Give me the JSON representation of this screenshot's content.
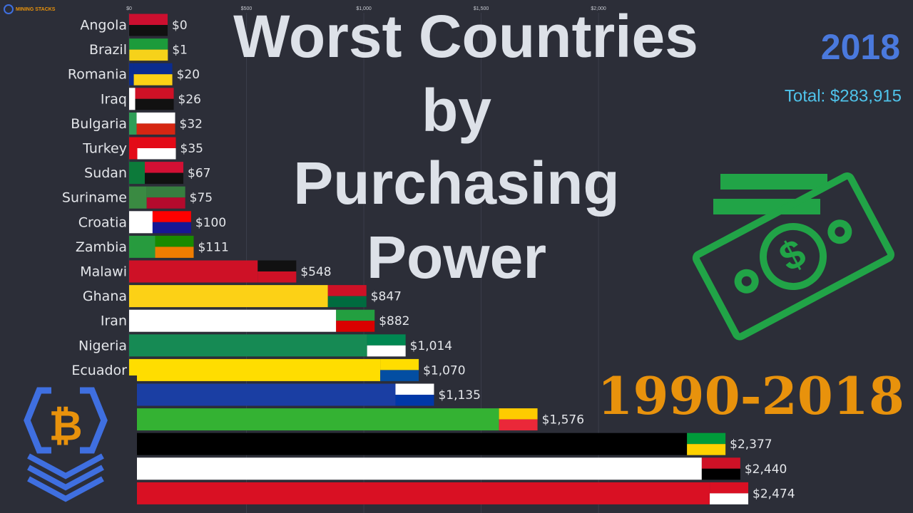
{
  "chart_data": {
    "type": "bar",
    "orientation": "horizontal",
    "title": [
      "Worst Countries",
      "by",
      "Purchasing",
      "Power"
    ],
    "year": "2018",
    "total": "Total: $283,915",
    "period": "1990-2018",
    "brand": "MINING STACKS",
    "categories": [
      "Angola",
      "Brazil",
      "Romania",
      "Iraq",
      "Bulgaria",
      "Turkey",
      "Sudan",
      "Suriname",
      "Croatia",
      "Zambia",
      "Malawi",
      "Ghana",
      "Iran",
      "Nigeria",
      "Ecuador",
      null,
      null,
      null,
      null,
      null
    ],
    "values": [
      0,
      1,
      20,
      26,
      32,
      35,
      67,
      75,
      100,
      111,
      548,
      847,
      882,
      1014,
      1070,
      1135,
      1576,
      2377,
      2440,
      2474
    ],
    "value_labels": [
      "$0",
      "$1",
      "$20",
      "$26",
      "$32",
      "$35",
      "$67",
      "$75",
      "$100",
      "$111",
      "$548",
      "$847",
      "$882",
      "$1,014",
      "$1,070",
      "$1,135",
      "$1,576",
      "$2,377",
      "$2,440",
      "$2,474"
    ],
    "colors": [
      "#cc0f2f",
      "#1c9b3b",
      "#0b2c8f",
      "#ffffff",
      "#2f9e57",
      "#e30a17",
      "#0c7a3a",
      "#3a8a42",
      "#ffffff",
      "#279b3e",
      "#ce1126",
      "#fcd116",
      "#ffffff",
      "#168a54",
      "#ffdd00",
      "#1a3ea3",
      "#34b233",
      "#000000",
      "#ffffff",
      "#d91023"
    ],
    "flag_colors": [
      [
        "#cc0f2f",
        "#111111"
      ],
      [
        "#1c9b3b",
        "#f6d21a"
      ],
      [
        "#0b2c8f",
        "#fcd116"
      ],
      [
        "#ce1126",
        "#111111"
      ],
      [
        "#ffffff",
        "#d62612"
      ],
      [
        "#e30a17",
        "#ffffff"
      ],
      [
        "#d21034",
        "#111111"
      ],
      [
        "#377e3f",
        "#b40a2d"
      ],
      [
        "#ff0000",
        "#171796"
      ],
      [
        "#198a00",
        "#ef7d00"
      ],
      [
        "#111111",
        "#ce1126"
      ],
      [
        "#ce1126",
        "#006b3f"
      ],
      [
        "#239f40",
        "#da0000"
      ],
      [
        "#008751",
        "#ffffff"
      ],
      [
        "#ffdd00",
        "#034ea2"
      ],
      [
        "#ffffff",
        "#0038a8"
      ],
      [
        "#fecb00",
        "#ea2839"
      ],
      [
        "#009b3a",
        "#fed100"
      ],
      [
        "#ce1126",
        "#000000"
      ],
      [
        "#d91023",
        "#ffffff"
      ]
    ],
    "xlim": [
      0,
      3340
    ],
    "xticks": [
      {
        "value": 0,
        "label": "$0"
      },
      {
        "value": 500,
        "label": "$500"
      },
      {
        "value": 1000,
        "label": "$1,000"
      },
      {
        "value": 1500,
        "label": "$1,500"
      },
      {
        "value": 2000,
        "label": "$2,000"
      }
    ],
    "grid": true
  }
}
